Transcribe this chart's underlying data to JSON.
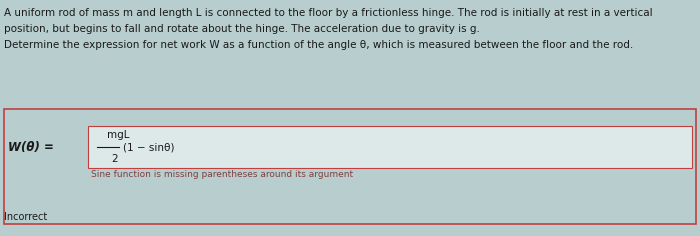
{
  "bg_color": "#b8cece",
  "text_color": "#1a1a1a",
  "outer_box_edge": "#c04040",
  "outer_box_face": "#b8cece",
  "inner_box_edge": "#c04040",
  "inner_box_face": "#dde8e8",
  "feedback_color": "#804040",
  "line1": "A uniform rod of mass m and length L is connected to the floor by a frictionless hinge. The rod is initially at rest in a vertical",
  "line2": "position, but begins to fall and rotate about the hinge. The acceleration due to gravity is g.",
  "line3": "Determine the expression for net work W as a function of the angle θ, which is measured between the floor and the rod.",
  "wlabel": "W(θ) =",
  "numerator": "mgL",
  "denominator": "2",
  "expr": "(1 − sinθ)",
  "feedback": "Sine function is missing parentheses around its argument",
  "incorrect": "Incorrect",
  "fs_body": 7.5,
  "fs_label": 8.5,
  "fs_formula": 7.5,
  "fs_feedback": 6.5,
  "fs_incorrect": 7.0
}
